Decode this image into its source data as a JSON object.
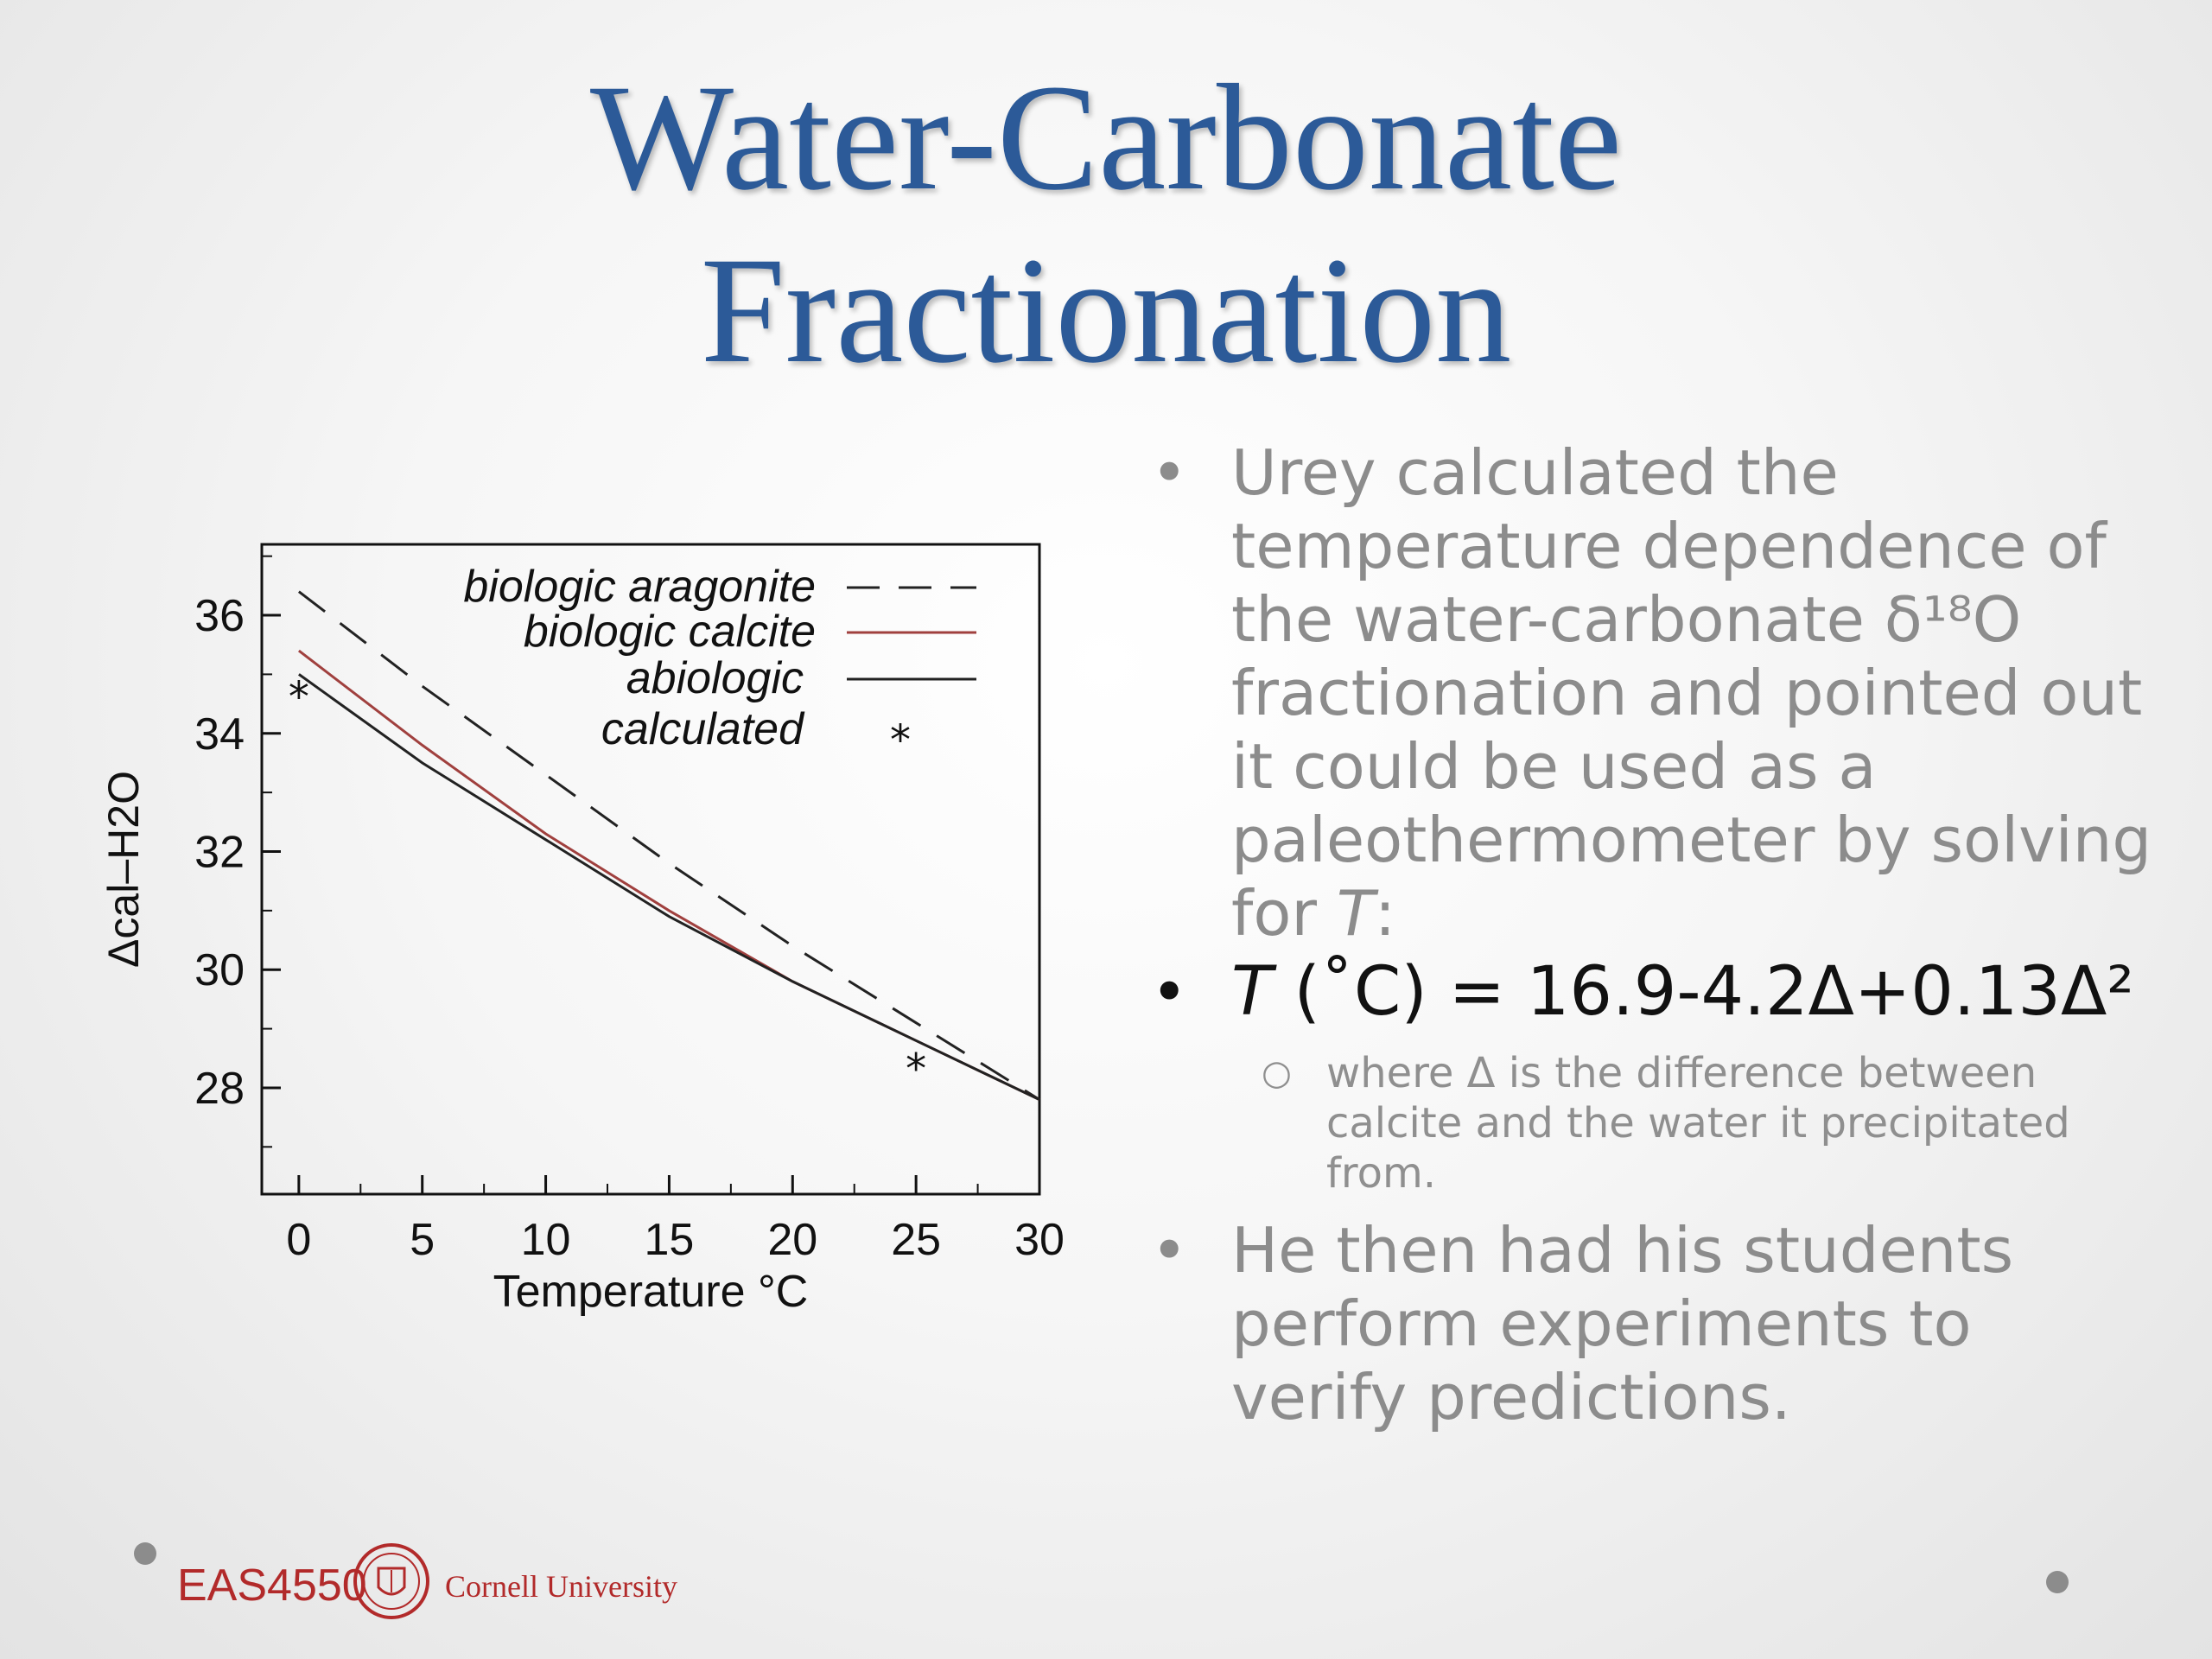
{
  "slide": {
    "title_line1": "Water-Carbonate",
    "title_line2": "Fractionation",
    "bullet1_text": "Urey calculated the temperature dependence of the water-carbonate δ¹⁸O fractionation and pointed out it could be used as a paleothermometer by solving for ",
    "bullet1_var": "T",
    "bullet1_tail": ":",
    "formula_var": "T",
    "formula_rest": " (˚C) = 16.9-4.2Δ+0.13Δ²",
    "sub_text": "where Δ is the difference between calcite and the water it precipitated from.",
    "bullet3_text": "He then had his students perform experiments to verify predictions.",
    "course_label": "EAS4550",
    "university_label": "Cornell University"
  },
  "chart_data": {
    "type": "line",
    "xlabel": "Temperature °C",
    "ylabel": "Δcal–H2O",
    "xlim": [
      -1.5,
      30
    ],
    "ylim": [
      26.2,
      37.2
    ],
    "xticks": [
      0,
      5,
      10,
      15,
      20,
      25,
      30
    ],
    "yticks": [
      28,
      30,
      32,
      34,
      36
    ],
    "legend_position": "top-right",
    "series": [
      {
        "name": "biologic aragonite",
        "style": "dashed",
        "color": "#222222",
        "x": [
          0,
          5,
          10,
          15,
          20,
          25,
          30
        ],
        "y": [
          36.4,
          34.8,
          33.3,
          31.8,
          30.4,
          29.1,
          27.8
        ]
      },
      {
        "name": "biologic calcite",
        "style": "solid",
        "color": "#a0403e",
        "x": [
          0,
          5,
          10,
          15,
          20,
          25,
          30
        ],
        "y": [
          35.4,
          33.8,
          32.3,
          31.0,
          29.8,
          28.8,
          27.8
        ]
      },
      {
        "name": "abiologic",
        "style": "solid",
        "color": "#222222",
        "x": [
          0,
          5,
          10,
          15,
          20,
          25,
          30
        ],
        "y": [
          35.0,
          33.5,
          32.2,
          30.9,
          29.8,
          28.8,
          27.8
        ]
      },
      {
        "name": "calculated",
        "style": "marker",
        "marker": "*",
        "color": "#111111",
        "x": [
          0,
          25
        ],
        "y": [
          34.7,
          28.4
        ]
      }
    ]
  }
}
